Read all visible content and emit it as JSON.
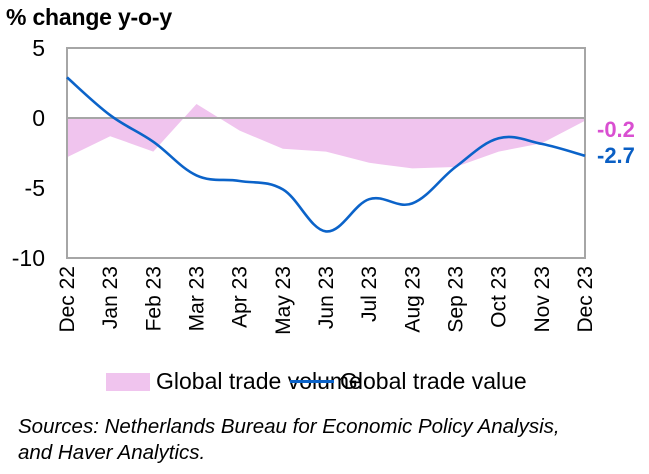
{
  "chart_data": {
    "type": "area+line",
    "title": "% change y-o-y",
    "xlabel": "",
    "ylabel": "% change y-o-y",
    "ylim": [
      -10,
      5
    ],
    "yticks": [
      5,
      0,
      -5,
      -10
    ],
    "grid": false,
    "categories": [
      "Dec 22",
      "Jan 23",
      "Feb 23",
      "Mar 23",
      "Apr 23",
      "May 23",
      "Jun 23",
      "Jul 23",
      "Aug 23",
      "Sep 23",
      "Oct 23",
      "Nov 23",
      "Dec 23"
    ],
    "series": [
      {
        "name": "Global trade volume",
        "type": "area",
        "color": "#f0c4ee",
        "values": [
          -2.8,
          -1.3,
          -2.4,
          1.0,
          -0.9,
          -2.2,
          -2.4,
          -3.2,
          -3.6,
          -3.5,
          -2.4,
          -1.8,
          -0.2
        ],
        "end_label": "-0.2",
        "end_label_color": "#d94fd1"
      },
      {
        "name": "Global trade value",
        "type": "line",
        "color": "#0b63c9",
        "values": [
          2.9,
          0.2,
          -1.7,
          -4.1,
          -4.5,
          -5.1,
          -8.1,
          -5.8,
          -6.1,
          -3.5,
          -1.45,
          -1.85,
          -2.7
        ],
        "end_label": "-2.7",
        "end_label_color": "#0a5fc4"
      }
    ],
    "legend_position": "bottom",
    "source_note": "Sources: Netherlands Bureau for Economic Policy Analysis, and Haver Analytics."
  },
  "title": "% change y-o-y",
  "legend": {
    "items": [
      {
        "label": "Global trade volume"
      },
      {
        "label": "Global trade value"
      }
    ]
  },
  "sources": {
    "line1": "Sources: Netherlands Bureau for Economic Policy Analysis,",
    "line2": "and Haver Analytics."
  }
}
